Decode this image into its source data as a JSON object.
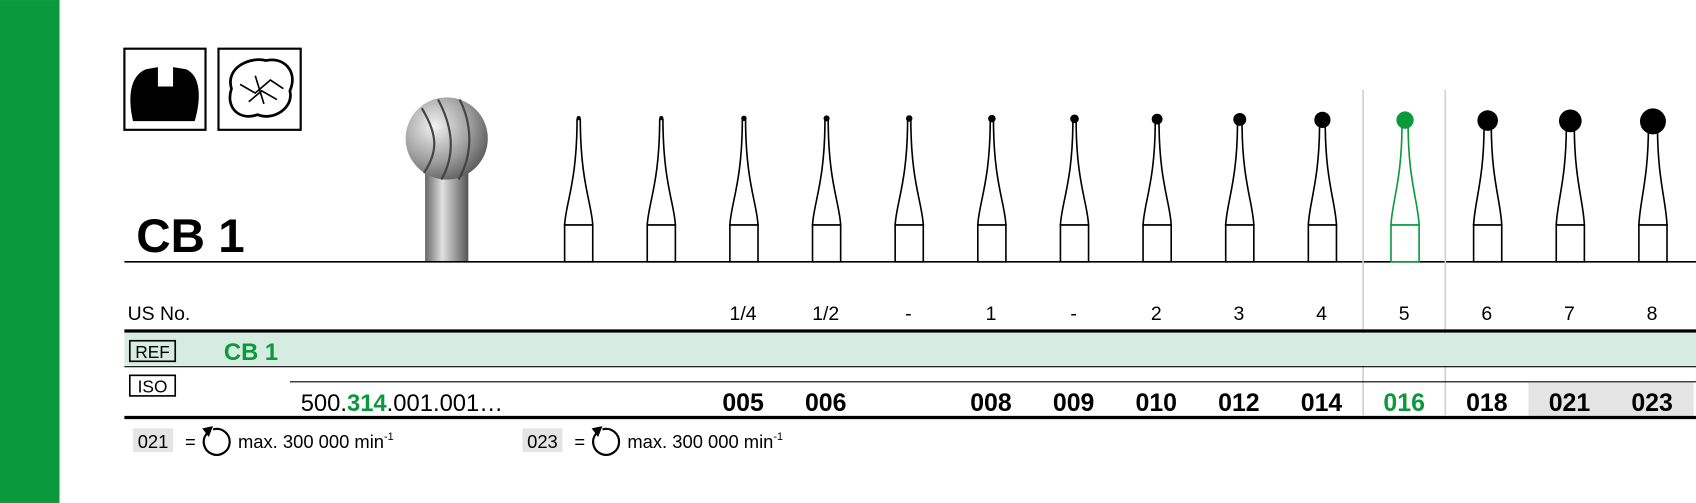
{
  "title": "CB 1",
  "us_no_label": "US No.",
  "ref_label": "REF",
  "ref_value": "CB 1",
  "iso_label": "ISO",
  "iso_code": {
    "prefix": "500.",
    "shank": "314",
    "suffix": ".001.001…"
  },
  "columns": [
    {
      "us_no": "1/4",
      "iso": "005"
    },
    {
      "us_no": "1/2",
      "iso": "006"
    },
    {
      "us_no": "-",
      "iso": null
    },
    {
      "us_no": "1",
      "iso": "008"
    },
    {
      "us_no": "-",
      "iso": "009"
    },
    {
      "us_no": "2",
      "iso": "010"
    },
    {
      "us_no": "3",
      "iso": "012"
    },
    {
      "us_no": "4",
      "iso": "014"
    },
    {
      "us_no": "5",
      "iso": "016",
      "highlighted": true
    },
    {
      "us_no": "6",
      "iso": "018"
    },
    {
      "us_no": "7",
      "iso": "021",
      "shaded": true
    },
    {
      "us_no": "8",
      "iso": "023",
      "shaded": true
    }
  ],
  "footnotes": [
    {
      "size": "021",
      "equals": "=",
      "text": "max. 300 000 min",
      "exponent": "-1"
    },
    {
      "size": "023",
      "equals": "=",
      "text": "max. 300 000 min",
      "exponent": "-1"
    }
  ]
}
